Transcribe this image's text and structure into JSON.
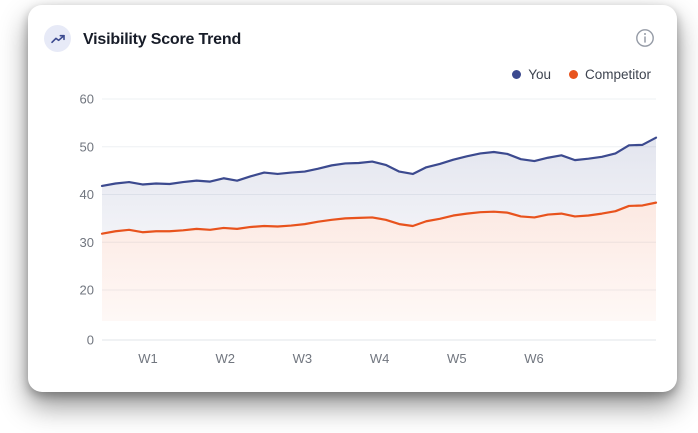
{
  "card": {
    "title": "Visibility Score Trend",
    "header_icon": "trending-up-icon",
    "info_icon": "info-icon"
  },
  "colors": {
    "you_line": "#3c4a8f",
    "competitor_line": "#e8531d",
    "you_fill_top": "rgba(67,80,144,0.15)",
    "you_fill_bottom": "rgba(67,80,144,0.07)",
    "competitor_fill_top": "rgba(233,83,30,0.13)",
    "competitor_fill_bottom": "rgba(233,83,30,0.04)",
    "gridline": "#eef0f3",
    "zero_line": "#e2e4e9",
    "tick_text": "#71767f",
    "icon_bg": "#e7eaf7",
    "title_text": "#171c28"
  },
  "chart_data": {
    "type": "area",
    "title": "Visibility Score Trend",
    "xlabel": "",
    "ylabel": "",
    "grid": true,
    "legend_position": "top-right",
    "x_tick_labels": [
      "W1",
      "W2",
      "W3",
      "W4",
      "W5",
      "W6"
    ],
    "y_tick_labels": [
      60,
      50,
      40,
      30,
      20,
      0
    ],
    "ylim": [
      0,
      60
    ],
    "series": [
      {
        "name": "You",
        "color": "#3c4a8f",
        "values": [
          41.8,
          42.3,
          42.6,
          42.1,
          42.3,
          42.2,
          42.6,
          42.9,
          42.7,
          43.4,
          42.9,
          43.8,
          44.6,
          44.3,
          44.6,
          44.8,
          45.4,
          46.1,
          46.5,
          46.6,
          46.9,
          46.2,
          44.8,
          44.3,
          45.7,
          46.4,
          47.3,
          48.0,
          48.6,
          48.9,
          48.5,
          47.4,
          47.0,
          47.7,
          48.2,
          47.2,
          47.5,
          47.9,
          48.6,
          50.3,
          50.4,
          51.9
        ]
      },
      {
        "name": "Competitor",
        "color": "#e8531d",
        "values": [
          31.8,
          32.3,
          32.6,
          32.1,
          32.3,
          32.3,
          32.5,
          32.8,
          32.6,
          33.0,
          32.8,
          33.2,
          33.4,
          33.3,
          33.5,
          33.8,
          34.3,
          34.7,
          35.0,
          35.1,
          35.2,
          34.7,
          33.8,
          33.4,
          34.4,
          34.9,
          35.6,
          36.0,
          36.3,
          36.4,
          36.2,
          35.4,
          35.2,
          35.8,
          36.0,
          35.4,
          35.6,
          36.0,
          36.5,
          37.6,
          37.7,
          38.3
        ]
      }
    ]
  }
}
